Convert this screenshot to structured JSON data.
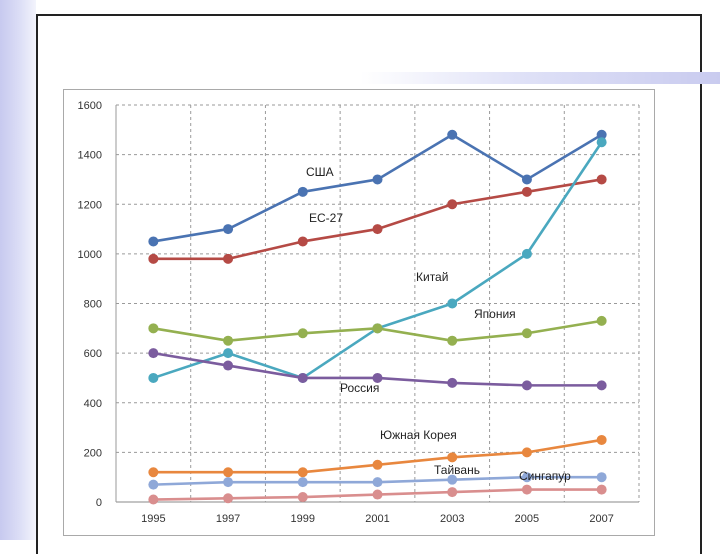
{
  "chart_data": {
    "type": "line",
    "x": [
      "1995",
      "1997",
      "1999",
      "2001",
      "2003",
      "2005",
      "2007"
    ],
    "ylim": [
      0,
      1600
    ],
    "yticks": [
      "0",
      "200",
      "400",
      "600",
      "800",
      "1000",
      "1200",
      "1400",
      "1600"
    ],
    "grid": true,
    "series": [
      {
        "name": "США",
        "color": "#4a73b2",
        "values": [
          1050,
          1100,
          1250,
          1300,
          1480,
          1300,
          1480
        ]
      },
      {
        "name": "ЕС-27",
        "color": "#b54a45",
        "values": [
          980,
          980,
          1050,
          1100,
          1200,
          1250,
          1300
        ]
      },
      {
        "name": "Китай",
        "color": "#4aa8bf",
        "values": [
          500,
          600,
          500,
          700,
          800,
          1000,
          1450
        ]
      },
      {
        "name": "Япония",
        "color": "#94b050",
        "values": [
          700,
          650,
          680,
          700,
          650,
          680,
          730
        ]
      },
      {
        "name": "Россия",
        "color": "#7b5c9e",
        "values": [
          600,
          550,
          500,
          500,
          480,
          470,
          470
        ]
      },
      {
        "name": "Южная Корея",
        "color": "#e8873e",
        "values": [
          120,
          120,
          120,
          150,
          180,
          200,
          250
        ]
      },
      {
        "name": "Тайвань",
        "color": "#8fa8d8",
        "values": [
          70,
          80,
          80,
          80,
          90,
          100,
          100
        ]
      },
      {
        "name": "Сингапур",
        "color": "#d98e8e",
        "values": [
          10,
          15,
          20,
          30,
          40,
          50,
          50
        ]
      }
    ]
  }
}
